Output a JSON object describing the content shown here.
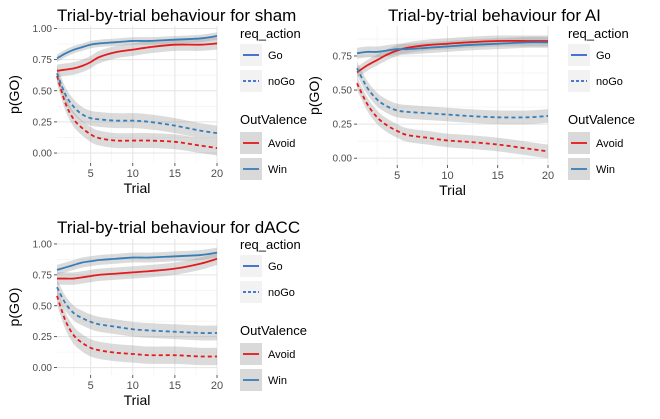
{
  "legend": {
    "req_action": {
      "title": "req_action",
      "items": [
        {
          "label": "Go",
          "dash": "solid",
          "color": "#3366cc"
        },
        {
          "label": "noGo",
          "dash": "dashed",
          "color": "#3366cc"
        }
      ]
    },
    "outvalence": {
      "title": "OutValence",
      "items": [
        {
          "label": "Avoid",
          "color": "#e41a1c"
        },
        {
          "label": "Win",
          "color": "#377eb8"
        }
      ]
    }
  },
  "chart_data": [
    {
      "type": "line",
      "title": "Trial-by-trial behaviour for sham",
      "xlabel": "Trial",
      "ylabel": "p(GO)",
      "xlim": [
        1,
        20
      ],
      "ylim": [
        -0.08,
        1.02
      ],
      "xticks": [
        5,
        10,
        15,
        20
      ],
      "yticks": [
        0.0,
        0.25,
        0.5,
        0.75,
        1.0
      ],
      "ytick_labels": [
        "0.00",
        "0.25",
        "0.50",
        "0.75",
        "1.00"
      ],
      "grid": true,
      "x": [
        1,
        2,
        3,
        4,
        5,
        6,
        8,
        10,
        12,
        15,
        18,
        20
      ],
      "series": [
        {
          "name": "Avoid / Go",
          "color": "#e41a1c",
          "dash": "solid",
          "values": [
            0.66,
            0.67,
            0.68,
            0.7,
            0.73,
            0.77,
            0.81,
            0.83,
            0.85,
            0.87,
            0.87,
            0.88
          ],
          "band": 0.05
        },
        {
          "name": "Win / Go",
          "color": "#377eb8",
          "dash": "solid",
          "values": [
            0.76,
            0.8,
            0.83,
            0.85,
            0.87,
            0.88,
            0.89,
            0.9,
            0.9,
            0.91,
            0.92,
            0.94
          ],
          "band": 0.03
        },
        {
          "name": "Avoid / noGo",
          "color": "#e41a1c",
          "dash": "dashed",
          "values": [
            0.62,
            0.4,
            0.27,
            0.2,
            0.15,
            0.12,
            0.1,
            0.1,
            0.1,
            0.09,
            0.06,
            0.04
          ],
          "band": 0.06
        },
        {
          "name": "Win / noGo",
          "color": "#377eb8",
          "dash": "dashed",
          "values": [
            0.64,
            0.47,
            0.37,
            0.31,
            0.28,
            0.27,
            0.26,
            0.26,
            0.25,
            0.22,
            0.18,
            0.16
          ],
          "band": 0.06
        }
      ]
    },
    {
      "type": "line",
      "title": "Trial-by-trial behaviour for AI",
      "xlabel": "Trial",
      "ylabel": "p(GO)",
      "xlim": [
        1,
        20
      ],
      "ylim": [
        -0.05,
        0.97
      ],
      "xticks": [
        5,
        10,
        15,
        20
      ],
      "yticks": [
        0.0,
        0.25,
        0.5,
        0.75
      ],
      "ytick_labels": [
        "0.00",
        "0.25",
        "0.50",
        "0.75"
      ],
      "grid": true,
      "x": [
        1,
        2,
        3,
        4,
        5,
        6,
        8,
        10,
        12,
        15,
        18,
        20
      ],
      "series": [
        {
          "name": "Avoid / Go",
          "color": "#e41a1c",
          "dash": "solid",
          "values": [
            0.63,
            0.68,
            0.72,
            0.76,
            0.79,
            0.81,
            0.83,
            0.84,
            0.85,
            0.86,
            0.86,
            0.86
          ],
          "band": 0.04
        },
        {
          "name": "Win / Go",
          "color": "#377eb8",
          "dash": "solid",
          "values": [
            0.77,
            0.78,
            0.78,
            0.79,
            0.8,
            0.8,
            0.81,
            0.82,
            0.83,
            0.84,
            0.85,
            0.85
          ],
          "band": 0.04
        },
        {
          "name": "Avoid / noGo",
          "color": "#e41a1c",
          "dash": "dashed",
          "values": [
            0.55,
            0.4,
            0.3,
            0.24,
            0.2,
            0.17,
            0.15,
            0.13,
            0.12,
            0.1,
            0.07,
            0.05
          ],
          "band": 0.05
        },
        {
          "name": "Win / noGo",
          "color": "#377eb8",
          "dash": "dashed",
          "values": [
            0.66,
            0.52,
            0.43,
            0.38,
            0.35,
            0.34,
            0.33,
            0.32,
            0.31,
            0.3,
            0.3,
            0.31
          ],
          "band": 0.05
        }
      ]
    },
    {
      "type": "line",
      "title": "Trial-by-trial behaviour for dACC",
      "xlabel": "Trial",
      "ylabel": "p(GO)",
      "xlim": [
        1,
        20
      ],
      "ylim": [
        -0.06,
        1.04
      ],
      "xticks": [
        5,
        10,
        15,
        20
      ],
      "yticks": [
        0.0,
        0.25,
        0.5,
        0.75,
        1.0
      ],
      "ytick_labels": [
        "0.00",
        "0.25",
        "0.50",
        "0.75",
        "1.00"
      ],
      "grid": true,
      "x": [
        1,
        2,
        3,
        4,
        5,
        6,
        8,
        10,
        12,
        15,
        18,
        20
      ],
      "series": [
        {
          "name": "Avoid / Go",
          "color": "#e41a1c",
          "dash": "solid",
          "values": [
            0.72,
            0.72,
            0.72,
            0.73,
            0.74,
            0.75,
            0.76,
            0.77,
            0.78,
            0.8,
            0.84,
            0.88
          ],
          "band": 0.05
        },
        {
          "name": "Win / Go",
          "color": "#377eb8",
          "dash": "solid",
          "values": [
            0.79,
            0.81,
            0.83,
            0.85,
            0.86,
            0.87,
            0.88,
            0.89,
            0.89,
            0.9,
            0.91,
            0.93
          ],
          "band": 0.04
        },
        {
          "name": "Avoid / noGo",
          "color": "#e41a1c",
          "dash": "dashed",
          "values": [
            0.58,
            0.38,
            0.26,
            0.2,
            0.16,
            0.14,
            0.12,
            0.11,
            0.1,
            0.1,
            0.09,
            0.09
          ],
          "band": 0.07
        },
        {
          "name": "Win / noGo",
          "color": "#377eb8",
          "dash": "dashed",
          "values": [
            0.65,
            0.52,
            0.44,
            0.4,
            0.37,
            0.35,
            0.33,
            0.31,
            0.3,
            0.29,
            0.28,
            0.28
          ],
          "band": 0.06
        }
      ]
    }
  ]
}
